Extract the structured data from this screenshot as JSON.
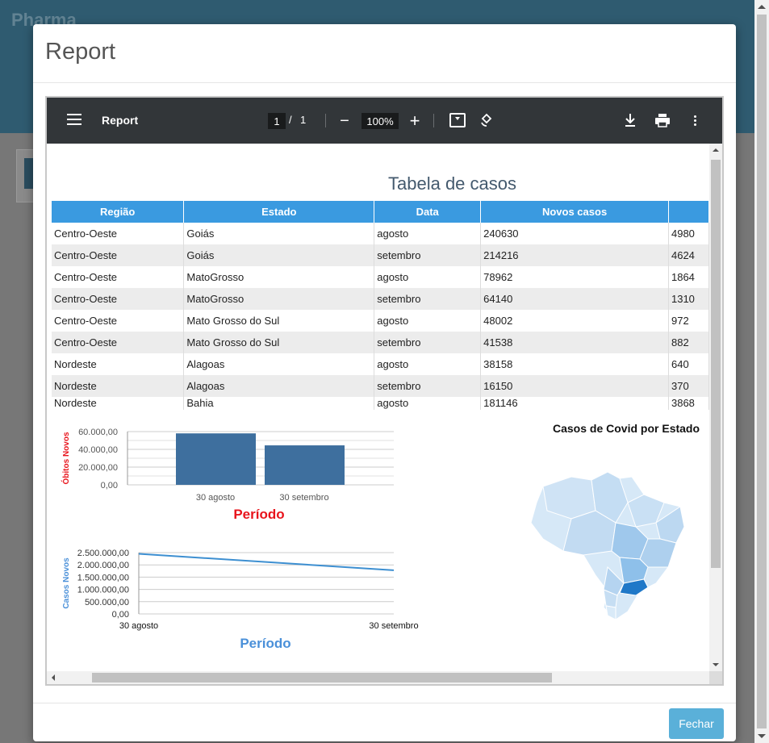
{
  "background": {
    "logo": "Pharma"
  },
  "modal": {
    "title": "Report",
    "close_button": "Fechar"
  },
  "viewer": {
    "title": "Report",
    "current_page": "1",
    "separator": "/",
    "total_pages": "1",
    "zoom": "100%"
  },
  "table": {
    "title": "Tabela de casos",
    "headers": [
      "Região",
      "Estado",
      "Data",
      "Novos casos",
      ""
    ],
    "rows": [
      [
        "Centro-Oeste",
        "Goiás",
        "agosto",
        "240630",
        "4980"
      ],
      [
        "Centro-Oeste",
        "Goiás",
        "setembro",
        "214216",
        "4624"
      ],
      [
        "Centro-Oeste",
        "MatoGrosso",
        "agosto",
        "78962",
        "1864"
      ],
      [
        "Centro-Oeste",
        "MatoGrosso",
        "setembro",
        "64140",
        "1310"
      ],
      [
        "Centro-Oeste",
        "Mato Grosso do Sul",
        "agosto",
        "48002",
        "972"
      ],
      [
        "Centro-Oeste",
        "Mato Grosso do Sul",
        "setembro",
        "41538",
        "882"
      ],
      [
        "Nordeste",
        "Alagoas",
        "agosto",
        "38158",
        "640"
      ],
      [
        "Nordeste",
        "Alagoas",
        "setembro",
        "16150",
        "370"
      ],
      [
        "Nordeste",
        "Bahia",
        "agosto",
        "181146",
        "3868"
      ]
    ]
  },
  "map": {
    "title": "Casos de Covid por Estado"
  },
  "chart_data": [
    {
      "type": "bar",
      "categories": [
        "30 agosto",
        "30 setembro"
      ],
      "values": [
        58000,
        44500
      ],
      "xlabel": "Período",
      "ylabel": "Óbitos Novos",
      "ylim": [
        0,
        60000
      ],
      "yticks": [
        "0,00",
        "20.000,00",
        "40.000,00",
        "60.000,00"
      ],
      "ytick_values": [
        0,
        20000,
        40000,
        60000
      ],
      "bar_color": "#3e6f9e",
      "xlabel_color": "#e8141c",
      "ylabel_color": "#e8141c"
    },
    {
      "type": "line",
      "categories": [
        "30 agosto",
        "30 setembro"
      ],
      "values": [
        2450000,
        1780000
      ],
      "xlabel": "Período",
      "ylabel": "Casos Novos",
      "ylim": [
        0,
        2500000
      ],
      "yticks": [
        "0,00",
        "500.000,00",
        "1.000.000,00",
        "1.500.000,00",
        "2.000.000,00",
        "2.500.000,00"
      ],
      "ytick_values": [
        0,
        500000,
        1000000,
        1500000,
        2000000,
        2500000
      ],
      "line_color": "#3d8fd1",
      "xlabel_color": "#4a90d9",
      "ylabel_color": "#4a90d9"
    }
  ]
}
